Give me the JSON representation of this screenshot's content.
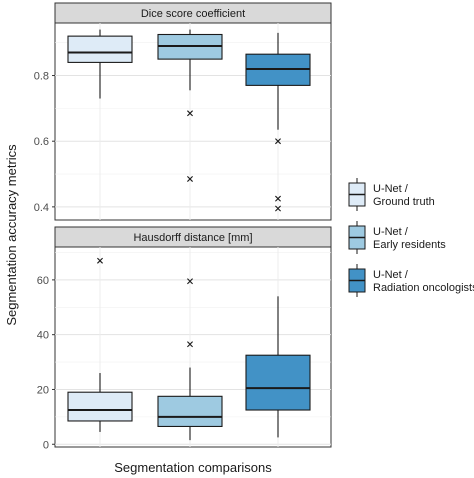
{
  "chart_data": {
    "type": "boxplot",
    "xlabel": "Segmentation comparisons",
    "ylabel": "Segmentation accuracy metrics",
    "legend": {
      "placement": "right",
      "entries": [
        {
          "line1": "U-Net /",
          "line2": "Ground truth",
          "color": "#deebf7"
        },
        {
          "line1": "U-Net /",
          "line2": "Early residents",
          "color": "#9ecae1"
        },
        {
          "line1": "U-Net /",
          "line2": "Radiation oncologists",
          "color": "#4292c6"
        }
      ]
    },
    "grid": true,
    "panels": [
      {
        "title": "Dice score coefficient",
        "ylim": [
          0.36,
          0.96
        ],
        "yticks": [
          0.4,
          0.6,
          0.8
        ],
        "ytick_labels": [
          "0.4",
          "0.6",
          "0.8"
        ],
        "boxes": [
          {
            "group": "U-Net / Ground truth",
            "whisker_low": 0.73,
            "q1": 0.84,
            "median": 0.87,
            "q3": 0.92,
            "whisker_high": 0.94,
            "outliers": []
          },
          {
            "group": "U-Net / Early residents",
            "whisker_low": 0.755,
            "q1": 0.85,
            "median": 0.89,
            "q3": 0.925,
            "whisker_high": 0.94,
            "outliers": [
              0.685,
              0.485
            ]
          },
          {
            "group": "U-Net / Radiation oncologists",
            "whisker_low": 0.635,
            "q1": 0.77,
            "median": 0.82,
            "q3": 0.865,
            "whisker_high": 0.93,
            "outliers": [
              0.6,
              0.425,
              0.395
            ]
          }
        ]
      },
      {
        "title": "Hausdorff distance [mm]",
        "ylim": [
          -1,
          72
        ],
        "yticks": [
          0,
          20,
          40,
          60
        ],
        "ytick_labels": [
          "0",
          "20",
          "40",
          "60"
        ],
        "boxes": [
          {
            "group": "U-Net / Ground truth",
            "whisker_low": 4.5,
            "q1": 8.5,
            "median": 12.5,
            "q3": 19,
            "whisker_high": 26,
            "outliers": [
              67
            ]
          },
          {
            "group": "U-Net / Early residents",
            "whisker_low": 1.5,
            "q1": 6.5,
            "median": 10,
            "q3": 17.5,
            "whisker_high": 28,
            "outliers": [
              59.5,
              36.5
            ]
          },
          {
            "group": "U-Net / Radiation oncologists",
            "whisker_low": 2.5,
            "q1": 12.5,
            "median": 20.5,
            "q3": 32.5,
            "whisker_high": 54,
            "outliers": []
          }
        ]
      }
    ]
  }
}
